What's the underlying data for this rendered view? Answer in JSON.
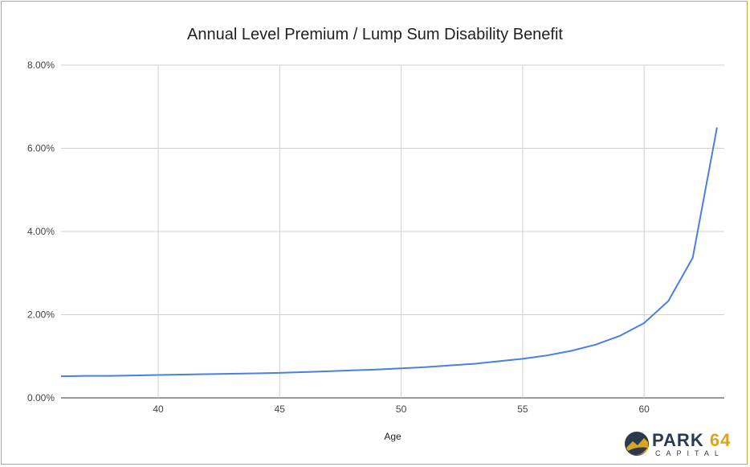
{
  "chart_data": {
    "type": "line",
    "title": "Annual Level Premium / Lump Sum Disability Benefit",
    "xlabel": "Age",
    "ylabel": "",
    "xlim": [
      36,
      63.3
    ],
    "ylim": [
      0,
      8
    ],
    "x_ticks": [
      40,
      45,
      50,
      55,
      60
    ],
    "y_ticks": [
      "0.00%",
      "2.00%",
      "4.00%",
      "6.00%",
      "8.00%"
    ],
    "y_tick_values": [
      0,
      2,
      4,
      6,
      8
    ],
    "grid": true,
    "series": [
      {
        "color": "#4a7fe3",
        "x": [
          36,
          37,
          38,
          39,
          40,
          41,
          42,
          43,
          44,
          45,
          46,
          47,
          48,
          49,
          50,
          51,
          52,
          53,
          54,
          55,
          56,
          57,
          58,
          59,
          60,
          61,
          62,
          63
        ],
        "values": [
          0.52,
          0.53,
          0.53,
          0.54,
          0.55,
          0.56,
          0.57,
          0.58,
          0.59,
          0.6,
          0.62,
          0.64,
          0.66,
          0.68,
          0.71,
          0.74,
          0.78,
          0.82,
          0.88,
          0.94,
          1.02,
          1.13,
          1.28,
          1.49,
          1.8,
          2.33,
          3.37,
          6.5
        ]
      }
    ]
  },
  "logo": {
    "name_main": "PARK ",
    "name_accent": "64",
    "sub": "CAPITAL",
    "colors": {
      "navy": "#2b3a4f",
      "gold": "#d9a520"
    }
  }
}
